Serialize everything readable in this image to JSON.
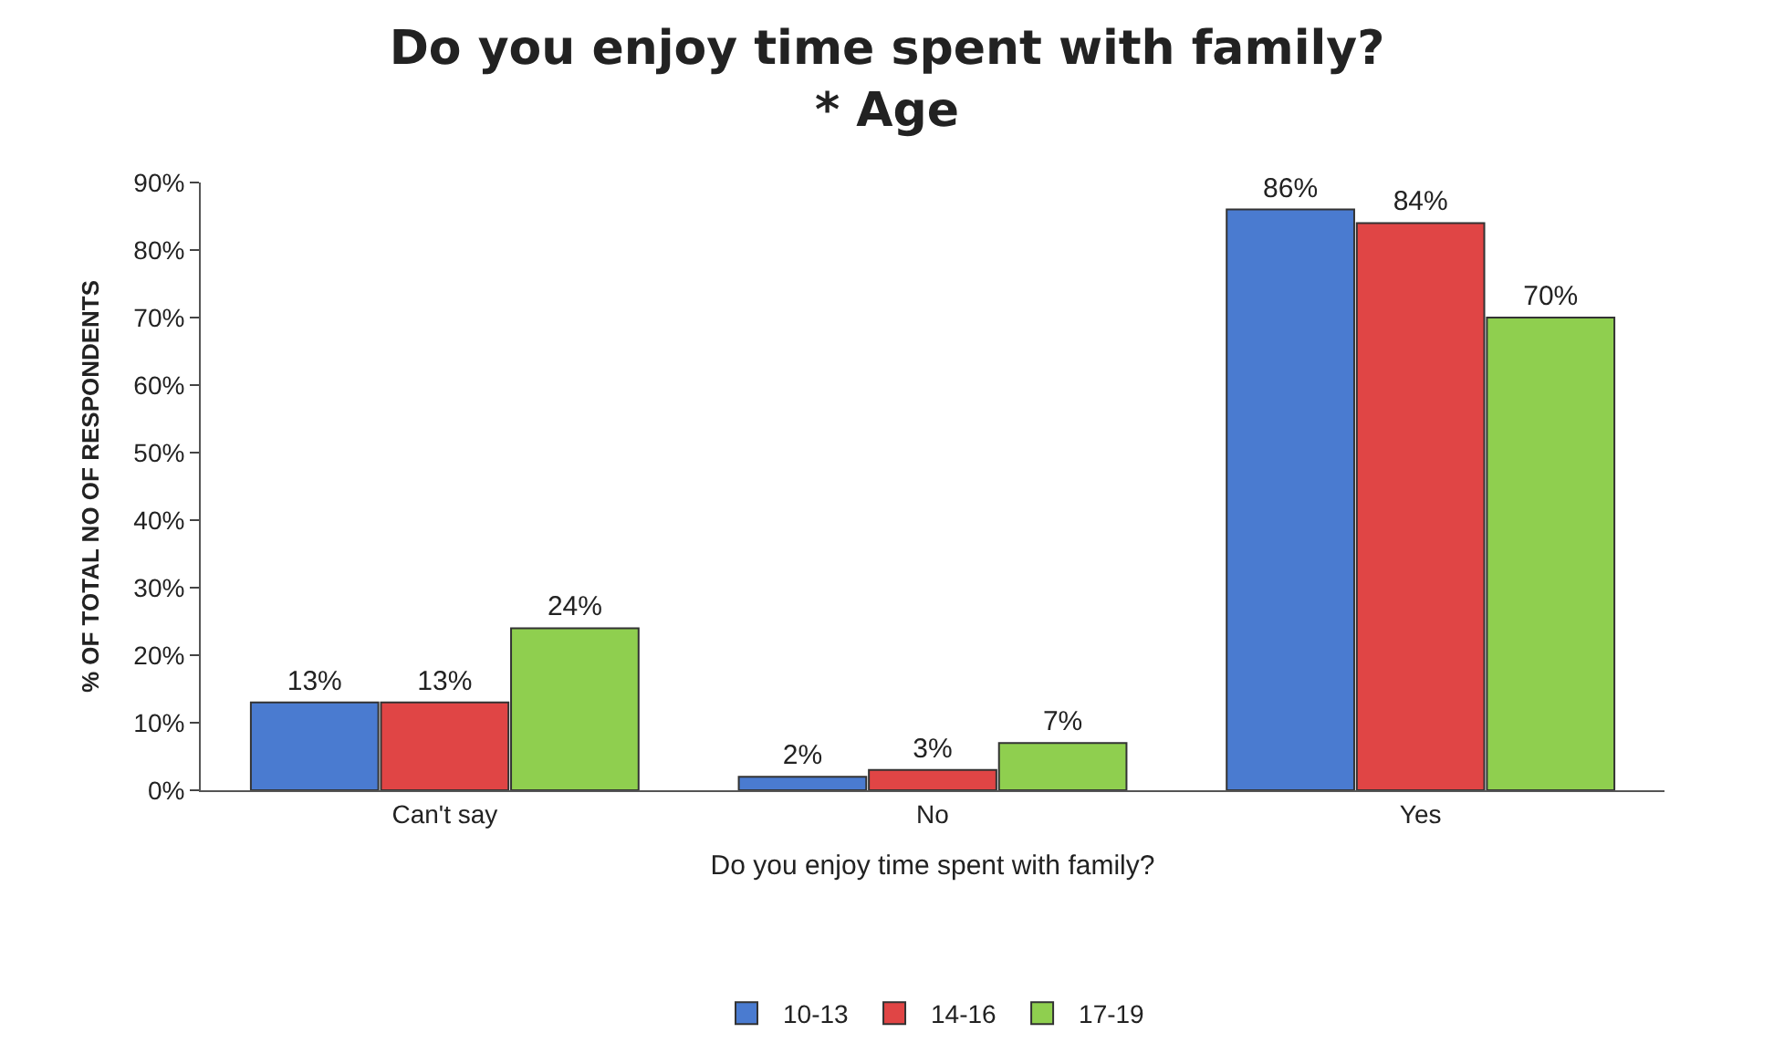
{
  "chart_data": {
    "type": "bar",
    "title": "Do you enjoy time spent with family?\n* Age",
    "xlabel": "Do you enjoy time spent with family?",
    "ylabel": "% OF TOTAL NO OF RESPONDENTS",
    "categories": [
      "Can't say",
      "No",
      "Yes"
    ],
    "series": [
      {
        "name": "10-13",
        "color": "#4a7bd0",
        "values": [
          13,
          2,
          86
        ],
        "value_labels": [
          "13%",
          "2%",
          "86%"
        ]
      },
      {
        "name": "14-16",
        "color": "#e04545",
        "values": [
          13,
          3,
          84
        ],
        "value_labels": [
          "13%",
          "3%",
          "84%"
        ]
      },
      {
        "name": "17-19",
        "color": "#8fcf4f",
        "values": [
          24,
          7,
          70
        ],
        "value_labels": [
          "24%",
          "7%",
          "70%"
        ]
      }
    ],
    "ylim": [
      0,
      90
    ],
    "yticks": [
      {
        "value": 0,
        "label": "0%"
      },
      {
        "value": 10,
        "label": "10%"
      },
      {
        "value": 20,
        "label": "20%"
      },
      {
        "value": 30,
        "label": "30%"
      },
      {
        "value": 40,
        "label": "40%"
      },
      {
        "value": 50,
        "label": "50%"
      },
      {
        "value": 60,
        "label": "60%"
      },
      {
        "value": 70,
        "label": "70%"
      },
      {
        "value": 80,
        "label": "80%"
      },
      {
        "value": 90,
        "label": "90%"
      }
    ],
    "grid": false,
    "legend": "bottom"
  }
}
